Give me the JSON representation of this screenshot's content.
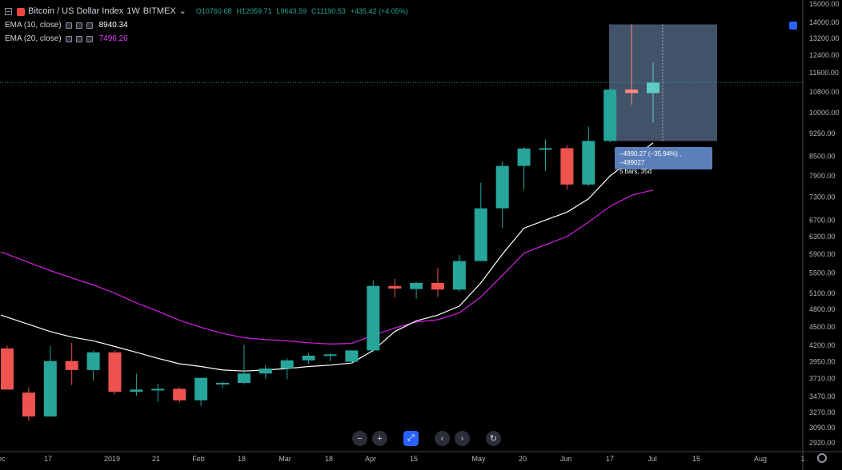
{
  "header": {
    "title": "Bitcoin / US Dollar Index",
    "interval": "1W",
    "exchange": "BITMEX",
    "ohlc": {
      "open": "O10760.68",
      "high": "H12059.71",
      "low": "L9643.59",
      "close": "C11190.53",
      "change": "+435.42 (+4.05%)"
    }
  },
  "indicators": [
    {
      "label": "EMA (10, close)",
      "value": "8940.34",
      "color": "#ffffff"
    },
    {
      "label": "EMA (20, close)",
      "value": "7496.26",
      "color": "#e040fb"
    }
  ],
  "measure": {
    "line1": "−4990.27 (−35.94%) , −499027",
    "line2": "5 bars, 35d"
  },
  "toolbar": [
    "−",
    "+",
    "⤢",
    "‹",
    "›",
    "↻"
  ],
  "colors": {
    "up": "#26a69a",
    "up_light": "#5fcdc3",
    "down": "#ef5350",
    "ema10": "#ffffff",
    "ema20": "#d81ee6",
    "current_line": "#26a69a"
  },
  "chart_data": {
    "type": "candlestick",
    "title": "Bitcoin / US Dollar Index",
    "y_axis_ticks": [
      2920,
      3090,
      3270,
      3470,
      3710,
      3950,
      4200,
      4500,
      4800,
      5100,
      5500,
      5900,
      6300,
      6700,
      7300,
      7900,
      8500,
      9250,
      10000,
      10800,
      11600,
      12400,
      13200,
      14000,
      15000
    ],
    "y_axis_tick_labels": [
      "2920.00",
      "3090.00",
      "3270.00",
      "3470.00",
      "3710.00",
      "3950.00",
      "4200.00",
      "4500.00",
      "4800.00",
      "5100.00",
      "5500.00",
      "5900.00",
      "6300.00",
      "6700.00",
      "7300.00",
      "7900.00",
      "8500.00",
      "9250.00",
      "10000.00",
      "10800.00",
      "11600.00",
      "12400.00",
      "13200.00",
      "14000.00",
      "15000.00"
    ],
    "x_axis_labels": [
      "ec",
      "17",
      "2019",
      "21",
      "Feb",
      "18",
      "Mar",
      "18",
      "Apr",
      "15",
      "May",
      "20",
      "Jun",
      "17",
      "Jul",
      "15",
      "Aug",
      "1"
    ],
    "y_scale": "log",
    "candles": [
      {
        "o": 4150,
        "h": 4190,
        "l": 3560,
        "c": 3560
      },
      {
        "o": 3520,
        "h": 3590,
        "l": 3170,
        "c": 3220
      },
      {
        "o": 3220,
        "h": 4190,
        "l": 3220,
        "c": 3960
      },
      {
        "o": 3960,
        "h": 4240,
        "l": 3620,
        "c": 3830
      },
      {
        "o": 3830,
        "h": 4120,
        "l": 3680,
        "c": 4090
      },
      {
        "o": 4090,
        "h": 4120,
        "l": 3500,
        "c": 3530
      },
      {
        "o": 3530,
        "h": 3780,
        "l": 3480,
        "c": 3560
      },
      {
        "o": 3560,
        "h": 3640,
        "l": 3400,
        "c": 3570
      },
      {
        "o": 3570,
        "h": 3590,
        "l": 3390,
        "c": 3420
      },
      {
        "o": 3420,
        "h": 3720,
        "l": 3350,
        "c": 3720
      },
      {
        "o": 3630,
        "h": 3670,
        "l": 3580,
        "c": 3650
      },
      {
        "o": 3650,
        "h": 4210,
        "l": 3630,
        "c": 3780
      },
      {
        "o": 3780,
        "h": 3900,
        "l": 3710,
        "c": 3850
      },
      {
        "o": 3850,
        "h": 4000,
        "l": 3700,
        "c": 3970
      },
      {
        "o": 3970,
        "h": 4080,
        "l": 3910,
        "c": 4040
      },
      {
        "o": 4040,
        "h": 4070,
        "l": 3960,
        "c": 4060
      },
      {
        "o": 3950,
        "h": 4120,
        "l": 3920,
        "c": 4120
      },
      {
        "o": 4120,
        "h": 5350,
        "l": 4100,
        "c": 5240
      },
      {
        "o": 5240,
        "h": 5380,
        "l": 5020,
        "c": 5190
      },
      {
        "o": 5180,
        "h": 5320,
        "l": 5000,
        "c": 5300
      },
      {
        "o": 5300,
        "h": 5600,
        "l": 5030,
        "c": 5170
      },
      {
        "o": 5170,
        "h": 5880,
        "l": 5130,
        "c": 5750
      },
      {
        "o": 5750,
        "h": 7700,
        "l": 5750,
        "c": 7000
      },
      {
        "o": 7000,
        "h": 8350,
        "l": 6500,
        "c": 8200
      },
      {
        "o": 8200,
        "h": 8800,
        "l": 7500,
        "c": 8750
      },
      {
        "o": 8750,
        "h": 9050,
        "l": 8050,
        "c": 8760
      },
      {
        "o": 8760,
        "h": 8850,
        "l": 7500,
        "c": 7650
      },
      {
        "o": 7650,
        "h": 9500,
        "l": 7600,
        "c": 9000
      },
      {
        "o": 9000,
        "h": 10950,
        "l": 8950,
        "c": 10900
      },
      {
        "o": 10900,
        "h": 13900,
        "l": 10300,
        "c": 10760
      },
      {
        "o": 10760,
        "h": 12060,
        "l": 9640,
        "c": 11190
      }
    ],
    "ema10": [
      4700,
      4540,
      4420,
      4330,
      4270,
      4180,
      4090,
      4000,
      3920,
      3880,
      3830,
      3815,
      3830,
      3850,
      3880,
      3900,
      3930,
      4120,
      4420,
      4600,
      4700,
      4860,
      5300,
      5900,
      6500,
      6700,
      6900,
      7250,
      7900,
      8400,
      8940
    ],
    "ema20": [
      5950,
      5720,
      5550,
      5400,
      5260,
      5100,
      4920,
      4770,
      4610,
      4490,
      4390,
      4320,
      4290,
      4270,
      4240,
      4220,
      4230,
      4360,
      4480,
      4580,
      4620,
      4740,
      5030,
      5450,
      5920,
      6110,
      6300,
      6650,
      7050,
      7350,
      7496
    ]
  }
}
